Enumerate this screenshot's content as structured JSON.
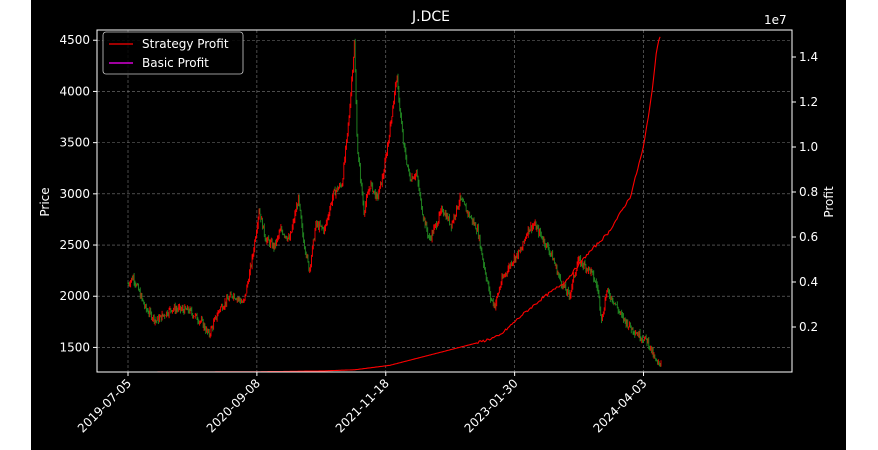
{
  "chart_data": {
    "type": "line",
    "title": "J.DCE",
    "xlabel": "",
    "ylabel": "Price",
    "y2label": "Profit",
    "y2_offset_label": "1e7",
    "x_ticks": [
      "2019-07-05",
      "2020-09-08",
      "2021-11-18",
      "2023-01-30",
      "2024-04-03"
    ],
    "y_ticks": [
      1500,
      2000,
      2500,
      3000,
      3500,
      4000,
      4500
    ],
    "y2_ticks": [
      "0.2",
      "0.4",
      "0.6",
      "0.8",
      "1.0",
      "1.2",
      "1.4"
    ],
    "ylim": [
      1260,
      4600
    ],
    "y2lim": [
      0,
      1.52
    ],
    "n_bars": 1410,
    "grid": true,
    "legend": {
      "position": "top-left",
      "entries": [
        {
          "label": "Strategy Profit",
          "color": "#ff0000"
        },
        {
          "label": "Basic Profit",
          "color": "#ff00ff"
        }
      ]
    },
    "colors": {
      "up": "#ff0000",
      "down": "#228b22",
      "background": "#000000",
      "axes": "#ffffff"
    },
    "price_keypoints": [
      [
        0,
        2120
      ],
      [
        12,
        2190
      ],
      [
        40,
        1880
      ],
      [
        65,
        1760
      ],
      [
        100,
        1880
      ],
      [
        140,
        1860
      ],
      [
        170,
        1740
      ],
      [
        185,
        1620
      ],
      [
        210,
        1880
      ],
      [
        240,
        2020
      ],
      [
        265,
        1930
      ],
      [
        285,
        2380
      ],
      [
        300,
        2850
      ],
      [
        315,
        2560
      ],
      [
        335,
        2480
      ],
      [
        350,
        2650
      ],
      [
        370,
        2550
      ],
      [
        390,
        2950
      ],
      [
        400,
        2600
      ],
      [
        415,
        2250
      ],
      [
        430,
        2700
      ],
      [
        450,
        2650
      ],
      [
        470,
        3000
      ],
      [
        490,
        3100
      ],
      [
        505,
        3700
      ],
      [
        518,
        4470
      ],
      [
        525,
        3450
      ],
      [
        540,
        2830
      ],
      [
        555,
        3100
      ],
      [
        570,
        2950
      ],
      [
        585,
        3200
      ],
      [
        600,
        3650
      ],
      [
        615,
        4150
      ],
      [
        630,
        3500
      ],
      [
        645,
        3150
      ],
      [
        660,
        3200
      ],
      [
        675,
        2800
      ],
      [
        690,
        2550
      ],
      [
        705,
        2700
      ],
      [
        720,
        2850
      ],
      [
        740,
        2700
      ],
      [
        760,
        2950
      ],
      [
        780,
        2800
      ],
      [
        800,
        2650
      ],
      [
        815,
        2300
      ],
      [
        830,
        1980
      ],
      [
        840,
        1910
      ],
      [
        855,
        2150
      ],
      [
        880,
        2350
      ],
      [
        900,
        2450
      ],
      [
        915,
        2650
      ],
      [
        930,
        2700
      ],
      [
        950,
        2560
      ],
      [
        970,
        2400
      ],
      [
        990,
        2150
      ],
      [
        1010,
        2000
      ],
      [
        1030,
        2350
      ],
      [
        1045,
        2300
      ],
      [
        1060,
        2240
      ],
      [
        1075,
        2080
      ],
      [
        1085,
        1760
      ],
      [
        1095,
        2050
      ],
      [
        1110,
        1970
      ],
      [
        1130,
        1800
      ],
      [
        1150,
        1700
      ],
      [
        1170,
        1620
      ],
      [
        1190,
        1560
      ],
      [
        1205,
        1390
      ],
      [
        1212,
        1330
      ],
      [
        1220,
        1360
      ]
    ],
    "profit_keypoints_1e7": [
      [
        0,
        0.0
      ],
      [
        300,
        0.001
      ],
      [
        450,
        0.005
      ],
      [
        520,
        0.01
      ],
      [
        600,
        0.03
      ],
      [
        700,
        0.08
      ],
      [
        800,
        0.13
      ],
      [
        850,
        0.16
      ],
      [
        900,
        0.25
      ],
      [
        950,
        0.33
      ],
      [
        1000,
        0.4
      ],
      [
        1050,
        0.52
      ],
      [
        1100,
        0.62
      ],
      [
        1150,
        0.78
      ],
      [
        1180,
        1.0
      ],
      [
        1200,
        1.25
      ],
      [
        1210,
        1.44
      ],
      [
        1218,
        1.49
      ]
    ]
  }
}
